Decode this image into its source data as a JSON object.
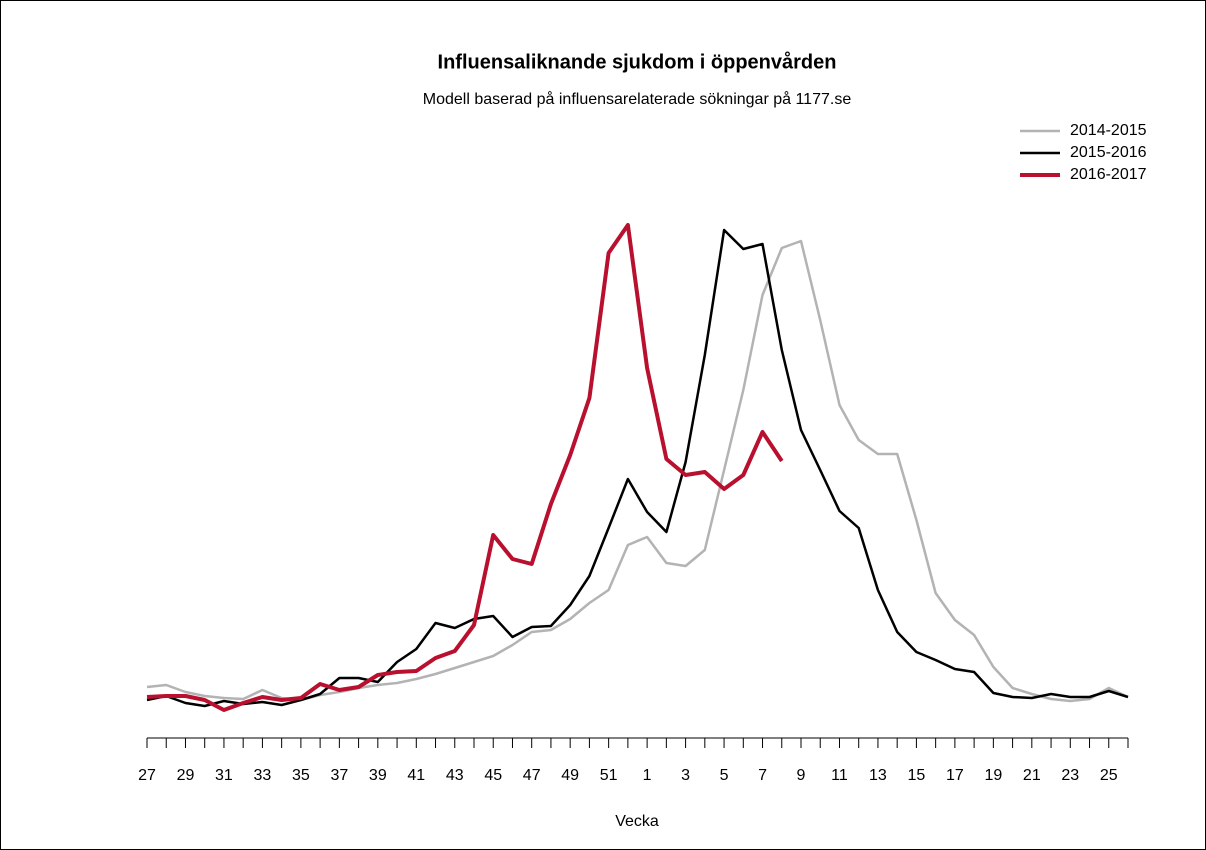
{
  "chart_data": {
    "type": "line",
    "title": "Influensaliknande sjukdom i öppenvården",
    "subtitle": "Modell baserad på influensarelaterade sökningar på 1177.se",
    "x_label": "Vecka",
    "categories": [
      "27",
      null,
      "29",
      null,
      "31",
      null,
      "33",
      null,
      "35",
      null,
      "37",
      null,
      "39",
      null,
      "41",
      null,
      "43",
      null,
      "45",
      null,
      "47",
      null,
      "49",
      null,
      "51",
      null,
      "1",
      null,
      "3",
      null,
      "5",
      null,
      "7",
      null,
      "9",
      null,
      "11",
      null,
      "13",
      null,
      "15",
      null,
      "17",
      null,
      "19",
      null,
      "21",
      null,
      "23",
      null,
      "25",
      null
    ],
    "ylim": [
      0,
      60
    ],
    "legend": "top-right",
    "series": [
      {
        "name": "2014-2015",
        "color": "#b3b3b3",
        "width": 2.5,
        "values": [
          4.3,
          4.5,
          3.8,
          3.4,
          3.2,
          3.1,
          4.0,
          3.2,
          3.0,
          3.5,
          3.8,
          4.2,
          4.5,
          4.7,
          5.1,
          5.6,
          6.2,
          6.8,
          7.4,
          8.5,
          9.8,
          10.0,
          11.1,
          12.7,
          14.0,
          18.5,
          19.3,
          16.7,
          16.4,
          18.0,
          26.0,
          34.0,
          43.5,
          48.2,
          48.9,
          41.0,
          32.5,
          29.0,
          27.6,
          27.6,
          21.0,
          13.7,
          11.0,
          9.5,
          6.3,
          4.2,
          3.6,
          3.1,
          2.9,
          3.1,
          4.2,
          3.3
        ]
      },
      {
        "name": "2015-2016",
        "color": "#000000",
        "width": 2.5,
        "values": [
          3.0,
          3.4,
          2.7,
          2.4,
          2.9,
          2.6,
          2.8,
          2.5,
          3.0,
          3.6,
          5.2,
          5.2,
          4.8,
          6.8,
          8.1,
          10.7,
          10.2,
          11.1,
          11.4,
          9.3,
          10.3,
          10.4,
          12.5,
          15.4,
          20.2,
          25.1,
          21.8,
          19.8,
          26.8,
          37.5,
          50.0,
          48.1,
          48.6,
          38.0,
          30.0,
          26.0,
          21.9,
          20.2,
          14.0,
          9.8,
          7.8,
          7.0,
          6.1,
          5.8,
          3.7,
          3.3,
          3.2,
          3.6,
          3.3,
          3.3,
          3.9,
          3.3
        ]
      },
      {
        "name": "2016-2017",
        "color": "#b8102e",
        "width": 4,
        "values": [
          3.3,
          3.4,
          3.4,
          3.0,
          2.0,
          2.7,
          3.3,
          3.0,
          3.2,
          4.6,
          4.0,
          4.3,
          5.5,
          5.8,
          5.9,
          7.2,
          7.9,
          10.5,
          19.5,
          17.1,
          16.6,
          22.6,
          27.5,
          33.2,
          47.7,
          50.5,
          36.2,
          27.1,
          25.5,
          25.8,
          24.1,
          25.5,
          29.8,
          26.9,
          null,
          null,
          null,
          null,
          null,
          null,
          null,
          null,
          null,
          null,
          null,
          null,
          null,
          null,
          null,
          null,
          null,
          null
        ]
      }
    ]
  }
}
